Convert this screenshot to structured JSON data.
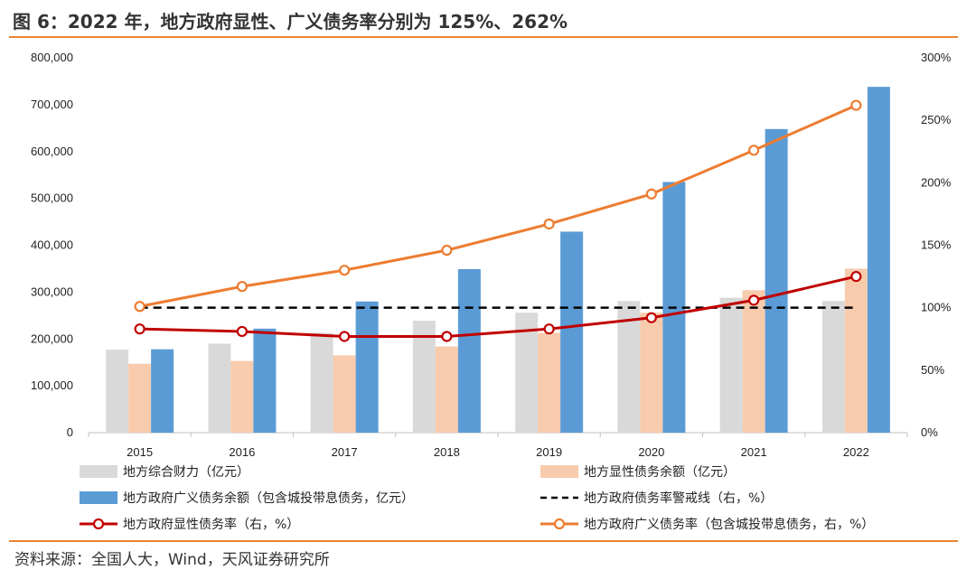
{
  "title": "图 6：2022 年，地方政府显性、广义债务率分别为 125%、262%",
  "source": "资料来源：全国人大，Wind，天风证券研究所",
  "colors": {
    "accent_rule": "#E9832F",
    "fiscal": "#D9D9D9",
    "explicit_debt": "#F8CBAD",
    "broad_debt": "#5B9BD5",
    "warning_line": "#000000",
    "explicit_rate": "#C00000",
    "broad_rate": "#ED7D31"
  },
  "chart_data": {
    "type": "bar",
    "categories": [
      "2015",
      "2016",
      "2017",
      "2018",
      "2019",
      "2020",
      "2021",
      "2022"
    ],
    "ylim": [
      0,
      800000
    ],
    "y2lim": [
      0,
      300
    ],
    "yticks": [
      "0",
      "100,000",
      "200,000",
      "300,000",
      "400,000",
      "500,000",
      "600,000",
      "700,000",
      "800,000"
    ],
    "y2ticks": [
      "0%",
      "50%",
      "100%",
      "150%",
      "200%",
      "250%",
      "300%"
    ],
    "grid": false,
    "legend_position": "bottom",
    "series": [
      {
        "name": "地方综合财力（亿元）",
        "kind": "bar",
        "axis": "left",
        "color": "#D9D9D9",
        "values": [
          177000,
          190000,
          213000,
          239000,
          256000,
          281000,
          288000,
          281000
        ]
      },
      {
        "name": "地方显性债务余额（亿元）",
        "kind": "bar",
        "axis": "left",
        "color": "#F8CBAD",
        "values": [
          147000,
          153000,
          165000,
          184000,
          213000,
          256000,
          304000,
          350000
        ]
      },
      {
        "name": "地方政府广义债务余额（包含城投带息债务，亿元）",
        "kind": "bar",
        "axis": "left",
        "color": "#5B9BD5",
        "values": [
          178000,
          222000,
          280000,
          349000,
          429000,
          535000,
          648000,
          738000
        ]
      },
      {
        "name": "地方政府债务率警戒线（右，%）",
        "kind": "dashed-line",
        "axis": "right",
        "color": "#000000",
        "values": [
          100,
          100,
          100,
          100,
          100,
          100,
          100,
          100
        ]
      },
      {
        "name": "地方政府显性债务率（右，%）",
        "kind": "line",
        "axis": "right",
        "color": "#C00000",
        "values": [
          83,
          81,
          77,
          77,
          83,
          92,
          106,
          125
        ]
      },
      {
        "name": "地方政府广义债务率（包含城投带息债务，右，%）",
        "kind": "line",
        "axis": "right",
        "color": "#ED7D31",
        "values": [
          101,
          117,
          130,
          146,
          167,
          191,
          226,
          262
        ]
      }
    ]
  }
}
